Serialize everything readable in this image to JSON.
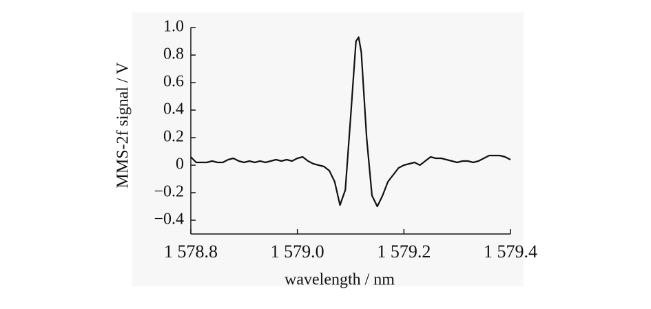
{
  "chart_data": {
    "type": "line",
    "x_label": "wavelength / nm",
    "y_label": "MMS-2f signal / V",
    "xlim": [
      1578.8,
      1579.4
    ],
    "ylim": [
      -0.5,
      1.0
    ],
    "xticks": [
      {
        "value": 1578.8,
        "label": "1 578.8"
      },
      {
        "value": 1579.0,
        "label": "1 579.0"
      },
      {
        "value": 1579.2,
        "label": "1 579.2"
      },
      {
        "value": 1579.4,
        "label": "1 579.4"
      }
    ],
    "yticks": [
      {
        "value": -0.4,
        "label": "−0.4"
      },
      {
        "value": -0.2,
        "label": "−0.2"
      },
      0,
      0.2,
      0.4,
      0.6,
      0.8,
      {
        "value": 1.0,
        "label": "1.0"
      }
    ],
    "grid": false,
    "series": [
      {
        "color": "#111111",
        "x": [
          1578.8,
          1578.81,
          1578.82,
          1578.83,
          1578.84,
          1578.85,
          1578.86,
          1578.87,
          1578.88,
          1578.89,
          1578.9,
          1578.91,
          1578.92,
          1578.93,
          1578.94,
          1578.95,
          1578.96,
          1578.97,
          1578.98,
          1578.99,
          1579.0,
          1579.01,
          1579.02,
          1579.03,
          1579.04,
          1579.05,
          1579.06,
          1579.07,
          1579.08,
          1579.09,
          1579.1,
          1579.11,
          1579.115,
          1579.12,
          1579.13,
          1579.14,
          1579.15,
          1579.16,
          1579.17,
          1579.18,
          1579.19,
          1579.2,
          1579.21,
          1579.22,
          1579.23,
          1579.24,
          1579.25,
          1579.26,
          1579.27,
          1579.28,
          1579.29,
          1579.3,
          1579.31,
          1579.32,
          1579.33,
          1579.34,
          1579.35,
          1579.36,
          1579.37,
          1579.38,
          1579.39,
          1579.4
        ],
        "values": [
          0.06,
          0.02,
          0.02,
          0.02,
          0.03,
          0.02,
          0.02,
          0.04,
          0.05,
          0.03,
          0.02,
          0.03,
          0.02,
          0.03,
          0.02,
          0.03,
          0.04,
          0.03,
          0.04,
          0.03,
          0.05,
          0.06,
          0.03,
          0.01,
          0.0,
          -0.01,
          -0.04,
          -0.12,
          -0.29,
          -0.18,
          0.35,
          0.9,
          0.93,
          0.82,
          0.2,
          -0.22,
          -0.3,
          -0.22,
          -0.12,
          -0.07,
          -0.02,
          0.0,
          0.01,
          0.02,
          0.0,
          0.03,
          0.06,
          0.05,
          0.05,
          0.04,
          0.03,
          0.02,
          0.03,
          0.03,
          0.02,
          0.03,
          0.05,
          0.07,
          0.07,
          0.07,
          0.06,
          0.04
        ]
      }
    ]
  }
}
